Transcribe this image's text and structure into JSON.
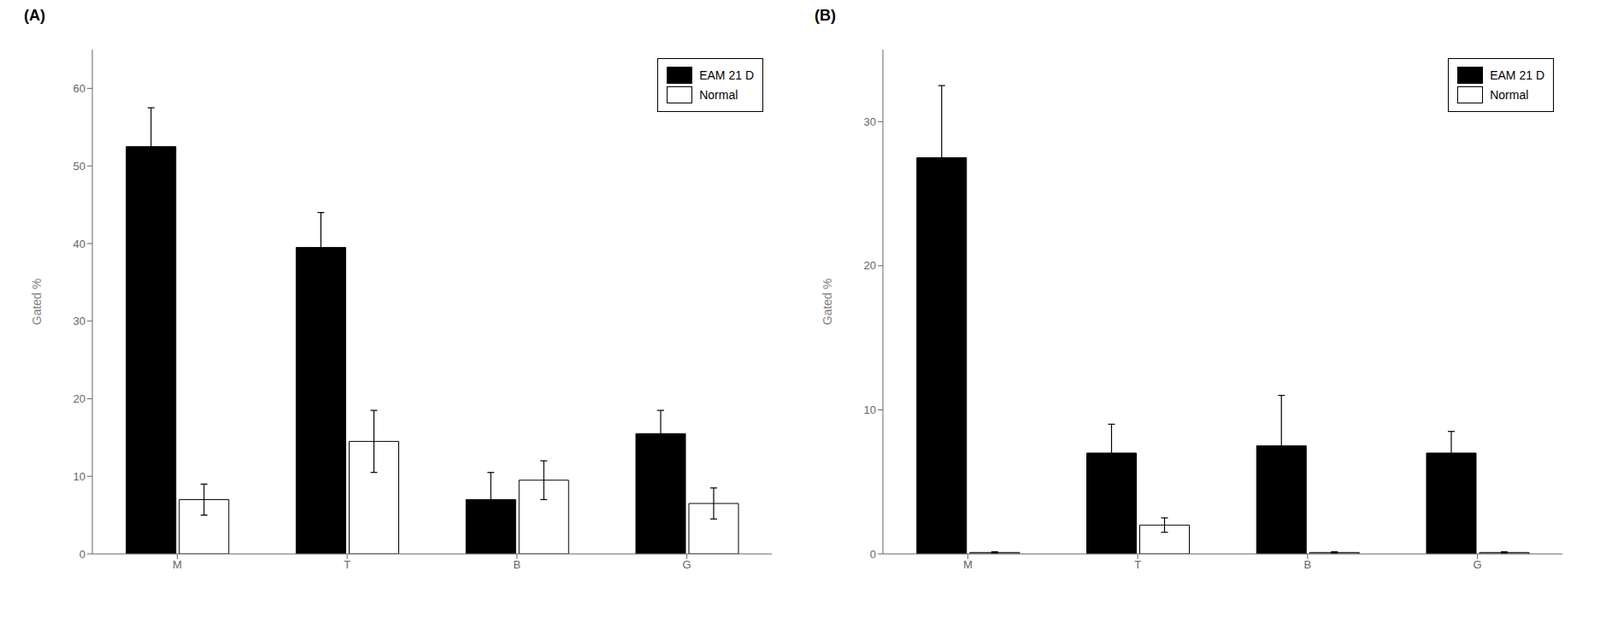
{
  "chart_data": [
    {
      "type": "bar",
      "title": "(A)",
      "categories": [
        "M",
        "T",
        "B",
        "G"
      ],
      "series": [
        {
          "name": "EAM 21 D",
          "color": "#000000",
          "values": [
            52.5,
            39.5,
            7.0,
            15.5
          ],
          "errors": [
            5.0,
            4.5,
            3.5,
            3.0
          ]
        },
        {
          "name": "Normal",
          "color": "#ffffff",
          "values": [
            7.0,
            14.5,
            9.5,
            6.5
          ],
          "errors": [
            2.0,
            4.0,
            2.5,
            2.0
          ]
        }
      ],
      "ylabel": "Gated %",
      "ylim": [
        0,
        65
      ],
      "yticks": [
        0,
        10,
        20,
        30,
        40,
        50,
        60
      ],
      "legend": "upper right",
      "grid": false
    },
    {
      "type": "bar",
      "title": "(B)",
      "categories": [
        "M",
        "T",
        "B",
        "G"
      ],
      "series": [
        {
          "name": "EAM 21 D",
          "color": "#000000",
          "values": [
            27.5,
            7.0,
            7.5,
            7.0
          ],
          "errors": [
            5.0,
            2.0,
            3.5,
            1.5
          ]
        },
        {
          "name": "Normal",
          "color": "#ffffff",
          "values": [
            0.1,
            2.0,
            0.1,
            0.1
          ],
          "errors": [
            0.05,
            0.5,
            0.05,
            0.05
          ]
        }
      ],
      "ylabel": "Gated %",
      "ylim": [
        0,
        35
      ],
      "yticks": [
        0,
        10,
        20,
        30
      ],
      "legend": "upper right",
      "grid": false
    }
  ]
}
